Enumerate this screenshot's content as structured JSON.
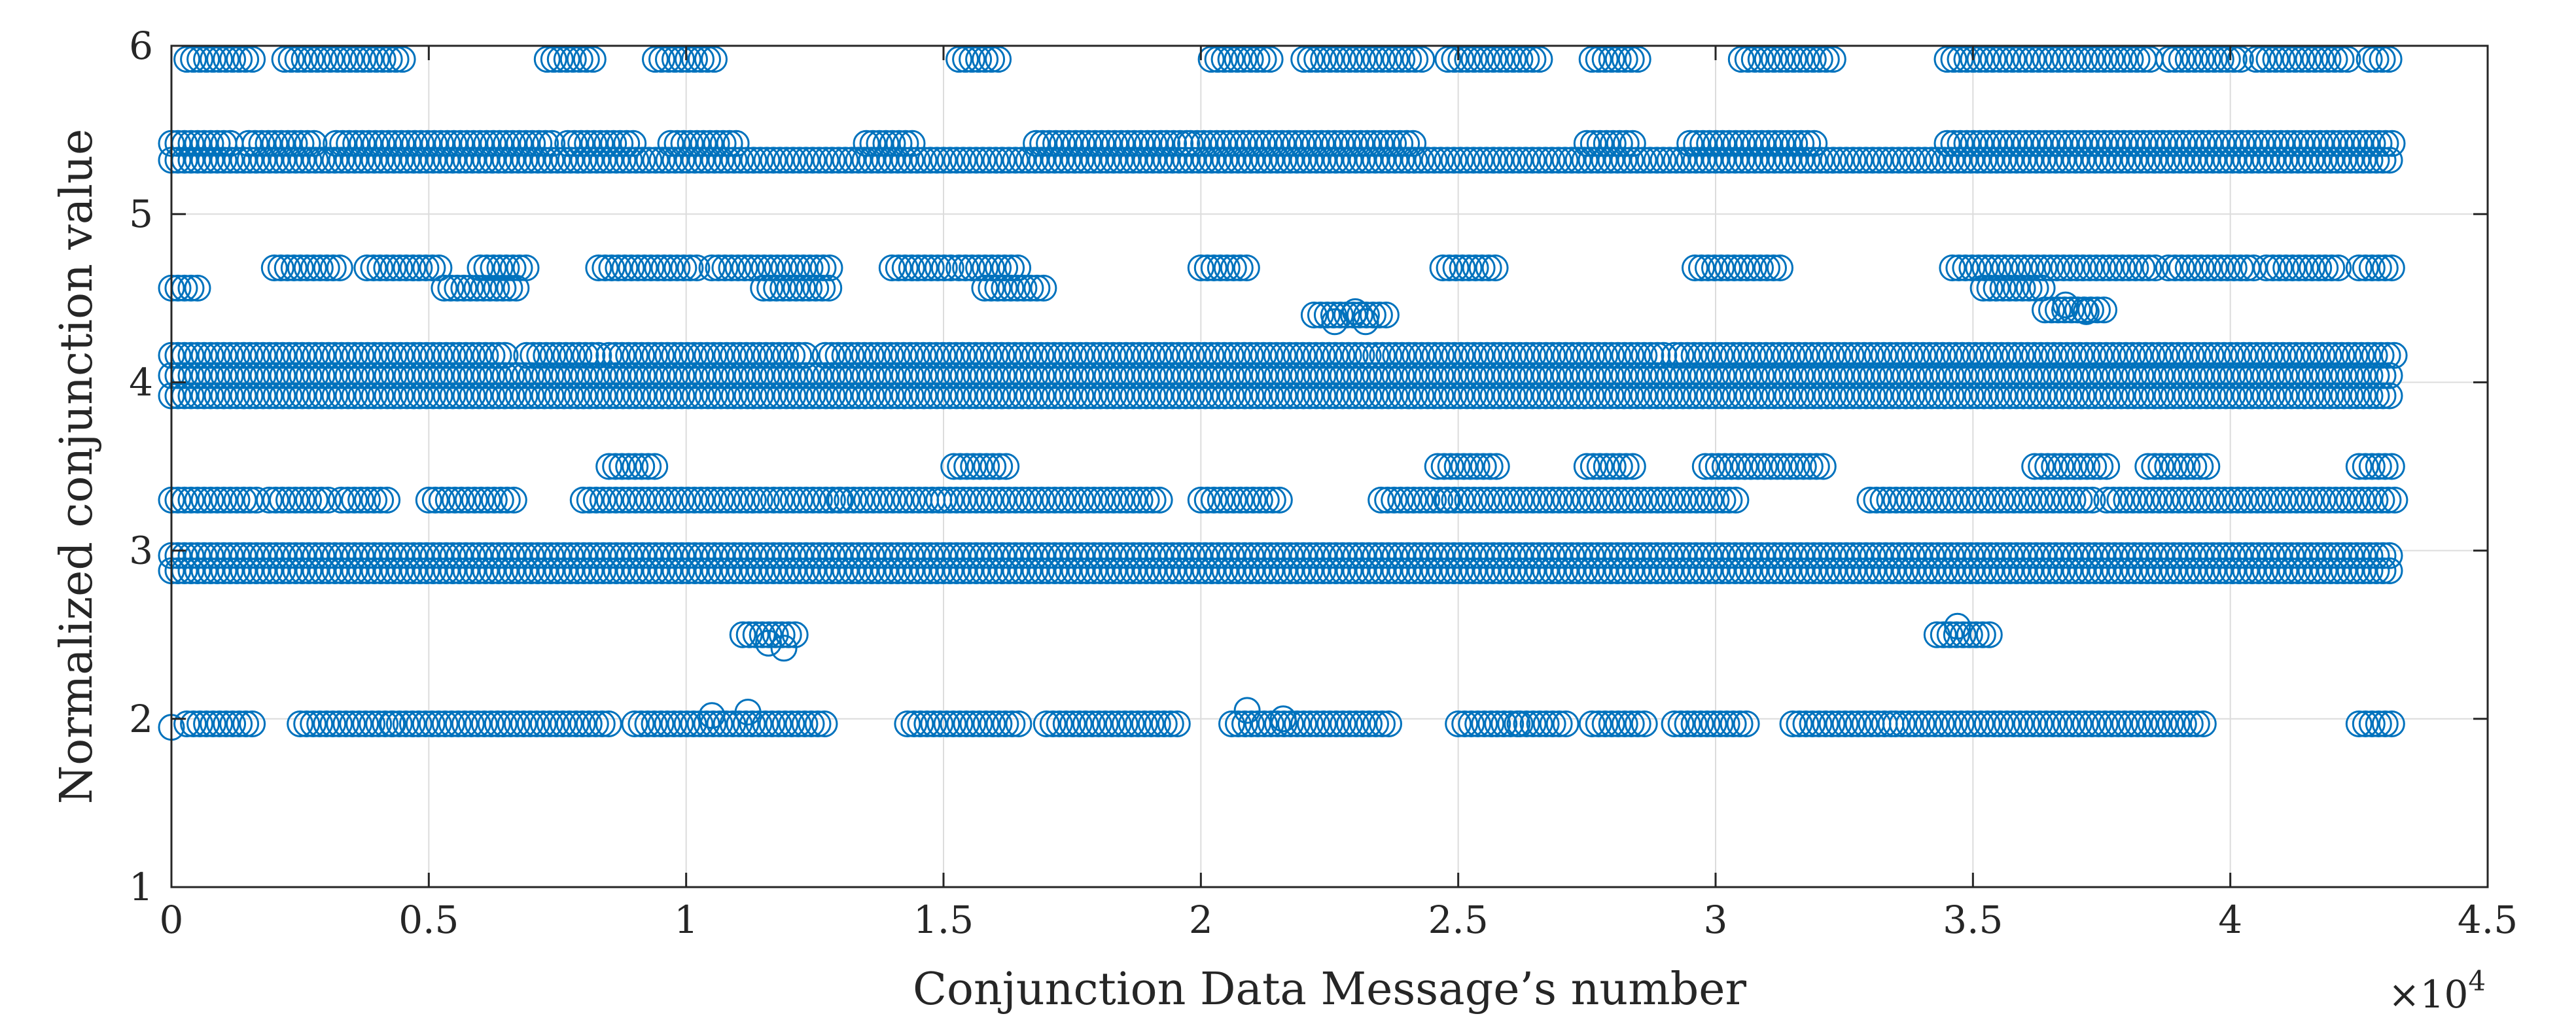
{
  "chart_data": {
    "type": "scatter",
    "title": "",
    "xlabel": "Conjunction Data Message’s number",
    "ylabel": "Normalized conjunction value",
    "x_exponent_label": "×10",
    "x_exponent_power": "4",
    "xlim": [
      0,
      45000
    ],
    "ylim": [
      1,
      6
    ],
    "xticks": [
      0,
      5000,
      10000,
      15000,
      20000,
      25000,
      30000,
      35000,
      40000,
      45000
    ],
    "xtick_labels": [
      "0",
      "0.5",
      "1",
      "1.5",
      "2",
      "2.5",
      "3",
      "3.5",
      "4",
      "4.5"
    ],
    "yticks": [
      1,
      2,
      3,
      4,
      5,
      6
    ],
    "ytick_labels": [
      "1",
      "2",
      "3",
      "4",
      "5",
      "6"
    ],
    "grid": true,
    "marker": "open-circle",
    "color": "#0072BD",
    "bands": [
      {
        "y": 5.92,
        "segments": [
          [
            300,
            1600
          ],
          [
            2200,
            4600
          ],
          [
            7300,
            8300
          ],
          [
            9400,
            10600
          ],
          [
            15300,
            16100
          ],
          [
            20200,
            21400
          ],
          [
            22000,
            24400
          ],
          [
            24800,
            26600
          ],
          [
            27600,
            28600
          ],
          [
            30500,
            32400
          ],
          [
            34500,
            38500
          ],
          [
            38800,
            40300
          ],
          [
            40500,
            42300
          ],
          [
            42700,
            43200
          ]
        ]
      },
      {
        "y": 5.42,
        "segments": [
          [
            0,
            1200
          ],
          [
            1500,
            2800
          ],
          [
            3200,
            7500
          ],
          [
            7700,
            9000
          ],
          [
            9700,
            11000
          ],
          [
            13500,
            14500
          ],
          [
            16800,
            19800
          ],
          [
            19800,
            24200
          ],
          [
            27500,
            28500
          ],
          [
            29500,
            32000
          ],
          [
            34500,
            43200
          ]
        ]
      },
      {
        "y": 5.32,
        "segments": [
          [
            0,
            43200
          ]
        ]
      },
      {
        "y": 4.68,
        "segments": [
          [
            2000,
            3300
          ],
          [
            3800,
            5200
          ],
          [
            6000,
            7000
          ],
          [
            8300,
            10300
          ],
          [
            10500,
            12900
          ],
          [
            14000,
            15200
          ],
          [
            15300,
            16500
          ],
          [
            20000,
            21000
          ],
          [
            24700,
            25800
          ],
          [
            29600,
            31300
          ],
          [
            34600,
            38600
          ],
          [
            38800,
            40500
          ],
          [
            40700,
            42100
          ],
          [
            42500,
            43200
          ]
        ]
      },
      {
        "y": 4.56,
        "segments": [
          [
            0,
            600
          ],
          [
            5300,
            6700
          ],
          [
            11500,
            12800
          ],
          [
            15800,
            17000
          ],
          [
            35200,
            36400
          ]
        ]
      },
      {
        "y": 4.4,
        "segments": [
          [
            22200,
            23600
          ]
        ]
      },
      {
        "y": 4.43,
        "segments": [
          [
            36400,
            37600
          ]
        ]
      },
      {
        "y": 4.16,
        "segments": [
          [
            0,
            6500
          ],
          [
            6900,
            8400
          ],
          [
            8500,
            12400
          ],
          [
            12700,
            23300
          ],
          [
            23400,
            29000
          ],
          [
            29200,
            43200
          ]
        ]
      },
      {
        "y": 4.04,
        "segments": [
          [
            0,
            43200
          ]
        ]
      },
      {
        "y": 3.92,
        "segments": [
          [
            0,
            43200
          ]
        ]
      },
      {
        "y": 3.5,
        "segments": [
          [
            8500,
            9400
          ],
          [
            15200,
            16300
          ],
          [
            24600,
            25800
          ],
          [
            27500,
            28500
          ],
          [
            29800,
            32100
          ],
          [
            36200,
            37600
          ],
          [
            38400,
            39600
          ],
          [
            42500,
            43200
          ]
        ]
      },
      {
        "y": 3.3,
        "segments": [
          [
            0,
            1700
          ],
          [
            1900,
            3100
          ],
          [
            3300,
            4300
          ],
          [
            5000,
            6700
          ],
          [
            8000,
            11600
          ],
          [
            11700,
            13000
          ],
          [
            13000,
            15000
          ],
          [
            15000,
            16300
          ],
          [
            16400,
            19200
          ],
          [
            20000,
            21600
          ],
          [
            23500,
            24800
          ],
          [
            24800,
            30400
          ],
          [
            33000,
            37400
          ],
          [
            37600,
            43200
          ]
        ]
      },
      {
        "y": 2.97,
        "segments": [
          [
            0,
            43200
          ]
        ]
      },
      {
        "y": 2.88,
        "segments": [
          [
            0,
            43200
          ]
        ]
      },
      {
        "y": 2.5,
        "segments": [
          [
            11100,
            12200
          ],
          [
            34300,
            35400
          ]
        ]
      },
      {
        "y": 1.97,
        "segments": [
          [
            300,
            1600
          ],
          [
            2500,
            4300
          ],
          [
            4300,
            8500
          ],
          [
            9000,
            12700
          ],
          [
            14300,
            16500
          ],
          [
            17000,
            19600
          ],
          [
            20600,
            23700
          ],
          [
            25000,
            26200
          ],
          [
            26200,
            27200
          ],
          [
            27600,
            28700
          ],
          [
            29200,
            30600
          ],
          [
            31500,
            33500
          ],
          [
            33500,
            39500
          ],
          [
            42500,
            43200
          ]
        ]
      }
    ],
    "scatter_points": [
      {
        "x": 0,
        "y": 1.95
      },
      {
        "x": 10500,
        "y": 2.02
      },
      {
        "x": 11200,
        "y": 2.04
      },
      {
        "x": 20900,
        "y": 2.05
      },
      {
        "x": 21600,
        "y": 2.0
      },
      {
        "x": 11600,
        "y": 2.45
      },
      {
        "x": 11900,
        "y": 2.42
      },
      {
        "x": 34700,
        "y": 2.55
      },
      {
        "x": 22600,
        "y": 4.36
      },
      {
        "x": 23000,
        "y": 4.42
      },
      {
        "x": 23200,
        "y": 4.36
      },
      {
        "x": 36800,
        "y": 4.46
      },
      {
        "x": 37200,
        "y": 4.42
      }
    ]
  }
}
